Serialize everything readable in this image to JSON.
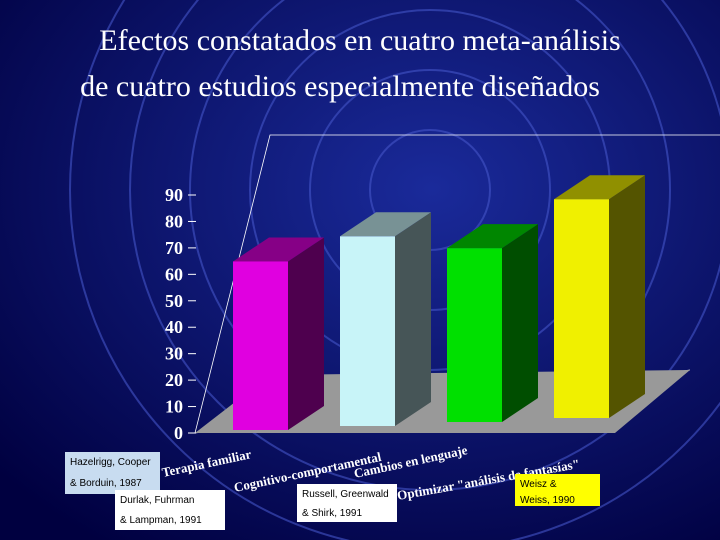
{
  "chart_data": {
    "type": "bar3d",
    "title": [
      "Efectos constatados en cuatro meta-análisis",
      "de cuatro estudios especialmente diseñados"
    ],
    "categories": [
      "Terapia familiar",
      "Cognitivo-comportamental",
      "Cambios en lenguaje",
      "Optimizar \"análisis de fantasías\""
    ],
    "values": [
      66,
      74,
      68,
      85
    ],
    "colors": [
      "#e000e0",
      "#c8f4f8",
      "#00e000",
      "#f0f000"
    ],
    "ylim": [
      0,
      90
    ],
    "yticks": [
      0,
      10,
      20,
      30,
      40,
      50,
      60,
      70,
      80,
      90
    ],
    "annotations": [
      {
        "lines": [
          "Hazelrigg, Cooper",
          "& Borduin, 1987"
        ],
        "color": "#c8dcf0"
      },
      {
        "lines": [
          "Durlak, Fuhrman",
          "& Lampman, 1991"
        ],
        "color": "#ffffff"
      },
      {
        "lines": [
          "Russell, Greenwald",
          "& Shirk, 1991"
        ],
        "color": "#ffffff"
      },
      {
        "lines": [
          "Weisz &",
          "Weiss, 1990"
        ],
        "color": "#ffff00"
      }
    ]
  }
}
